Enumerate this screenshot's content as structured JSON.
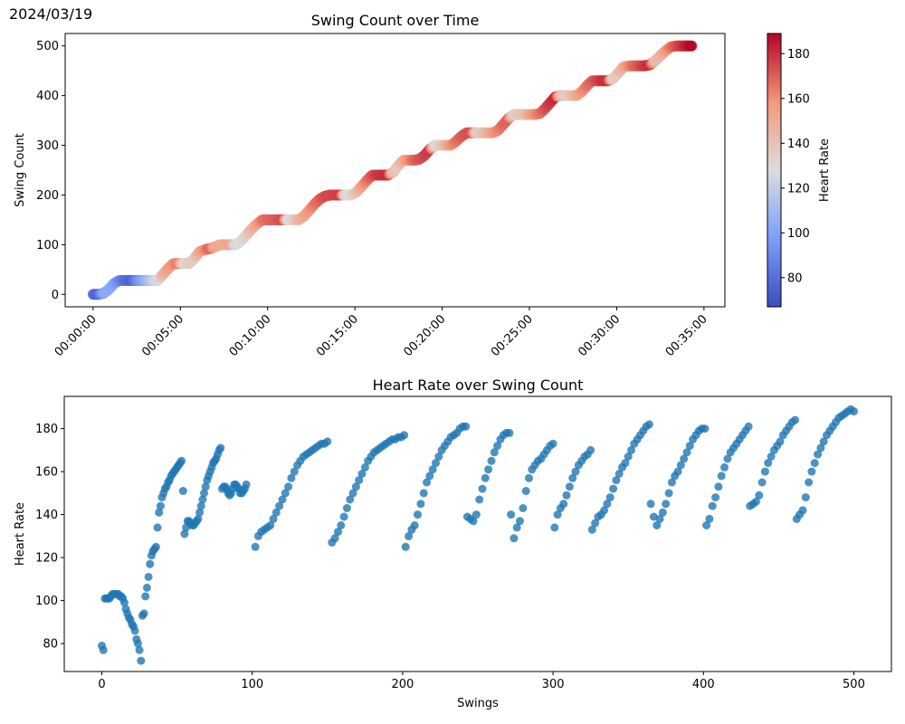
{
  "date": "2024/03/19",
  "chart_data": [
    {
      "type": "scatter",
      "title": "Swing Count over Time",
      "xlabel": "",
      "ylabel": "Swing Count",
      "xlim_minutes": [
        -1.6,
        36.2
      ],
      "ylim": [
        -25,
        525
      ],
      "x_ticks": [
        {
          "label": "00:00:00",
          "minutes": 0
        },
        {
          "label": "00:05:00",
          "minutes": 5
        },
        {
          "label": "00:10:00",
          "minutes": 10
        },
        {
          "label": "00:15:00",
          "minutes": 15
        },
        {
          "label": "00:20:00",
          "minutes": 20
        },
        {
          "label": "00:25:00",
          "minutes": 25
        },
        {
          "label": "00:30:00",
          "minutes": 30
        },
        {
          "label": "00:35:00",
          "minutes": 35
        }
      ],
      "y_ticks": [
        0,
        100,
        200,
        300,
        400,
        500
      ],
      "colorbar": {
        "label": "Heart Rate",
        "range": [
          67,
          189
        ],
        "ticks": [
          80,
          100,
          120,
          140,
          160,
          180
        ],
        "colormap": "coolwarm"
      },
      "grid": false,
      "series": [
        {
          "time_minutes": [
            0,
            0.3,
            0.6,
            0.9,
            1.2,
            1.5,
            1.8,
            2.2,
            2.6,
            3.0,
            3.4,
            3.7,
            4.0,
            4.3,
            4.6,
            4.9,
            5.2,
            5.5,
            5.8,
            6.1,
            6.4,
            6.7,
            7.0,
            7.3,
            7.6,
            7.9,
            8.2,
            8.5,
            8.8,
            9.1,
            9.4,
            9.7,
            10.0,
            10.3,
            10.6,
            10.9,
            11.2,
            11.5,
            11.8,
            12.1,
            12.4,
            12.7,
            13.0,
            13.3,
            13.6,
            13.9,
            14.2,
            14.5,
            14.8,
            15.1,
            15.4,
            15.7,
            16.0,
            16.3,
            16.6,
            16.9,
            17.2,
            17.5,
            17.8,
            18.1,
            18.4,
            18.7,
            19.0,
            19.3,
            19.6,
            19.9,
            20.2,
            20.5,
            20.8,
            21.1,
            21.4,
            21.7,
            22.0,
            22.3,
            22.6,
            22.9,
            23.2,
            23.5,
            23.8,
            24.1,
            24.4,
            24.7,
            25.0,
            25.3,
            25.6,
            25.9,
            26.2,
            26.5,
            26.8,
            27.1,
            27.4,
            27.7,
            28.0,
            28.3,
            28.6,
            28.9,
            29.2,
            29.5,
            29.8,
            30.1,
            30.4,
            30.7,
            31.0,
            31.3,
            31.6,
            31.9,
            32.2,
            32.5,
            32.8,
            33.1,
            33.4,
            33.7,
            34.0,
            34.3
          ],
          "swing_count": [
            0,
            0,
            2,
            10,
            22,
            28,
            28,
            28,
            28,
            28,
            28,
            28,
            40,
            52,
            62,
            62,
            62,
            62,
            72,
            86,
            90,
            92,
            96,
            100,
            100,
            100,
            100,
            108,
            120,
            132,
            142,
            150,
            150,
            150,
            150,
            150,
            150,
            150,
            150,
            158,
            170,
            182,
            192,
            198,
            200,
            200,
            200,
            200,
            200,
            206,
            218,
            230,
            240,
            240,
            240,
            240,
            246,
            260,
            270,
            270,
            270,
            272,
            280,
            292,
            300,
            300,
            300,
            300,
            308,
            318,
            325,
            325,
            325,
            325,
            325,
            325,
            330,
            342,
            354,
            362,
            362,
            362,
            362,
            362,
            364,
            374,
            386,
            398,
            400,
            400,
            400,
            400,
            408,
            420,
            430,
            430,
            430,
            430,
            434,
            446,
            458,
            460,
            460,
            460,
            460,
            462,
            470,
            480,
            490,
            498,
            500,
            500,
            500,
            500
          ],
          "heart_rate": [
            78,
            77,
            101,
            103,
            100,
            90,
            80,
            75,
            93,
            105,
            120,
            125,
            145,
            155,
            160,
            165,
            131,
            136,
            137,
            150,
            160,
            170,
            152,
            150,
            150,
            154,
            125,
            130,
            135,
            145,
            155,
            165,
            168,
            170,
            172,
            174,
            127,
            135,
            145,
            152,
            158,
            165,
            170,
            174,
            175,
            176,
            177,
            125,
            132,
            140,
            155,
            165,
            172,
            178,
            180,
            181,
            140,
            138,
            150,
            160,
            168,
            172,
            176,
            178,
            129,
            135,
            145,
            158,
            165,
            170,
            173,
            173,
            134,
            140,
            146,
            155,
            162,
            168,
            170,
            133,
            138,
            140,
            150,
            160,
            165,
            172,
            178,
            182,
            143,
            135,
            140,
            150,
            158,
            165,
            170,
            175,
            180,
            180,
            135,
            140,
            150,
            160,
            168,
            172,
            178,
            181,
            144,
            145,
            155,
            165,
            172,
            178,
            183,
            189
          ]
        }
      ]
    },
    {
      "type": "scatter",
      "title": "Heart Rate over Swing Count",
      "xlabel": "Swings",
      "ylabel": "Heart Rate",
      "xlim": [
        -25,
        525
      ],
      "ylim": [
        67,
        195
      ],
      "x_ticks": [
        0,
        100,
        200,
        300,
        400,
        500
      ],
      "y_ticks": [
        80,
        100,
        120,
        140,
        160,
        180
      ],
      "color": "#1f77b4",
      "grid": false,
      "segments": [
        {
          "x": [
            0,
            1,
            2,
            3,
            4,
            5,
            6,
            7,
            8,
            9,
            10,
            11,
            12,
            13,
            14,
            15,
            16,
            17,
            18,
            19,
            20,
            21,
            22,
            23,
            24,
            25,
            26,
            27,
            28,
            29,
            30,
            31,
            32,
            33,
            34,
            35,
            36,
            37,
            38,
            39,
            40,
            41,
            42,
            43,
            44,
            45,
            46,
            47,
            48,
            49,
            50,
            51,
            52,
            53,
            54,
            55,
            56,
            57,
            58,
            59,
            60,
            61
          ],
          "y": [
            79,
            77,
            101,
            101,
            101,
            101,
            102,
            103,
            103,
            103,
            103,
            103,
            102,
            102,
            101,
            99,
            96,
            94,
            92,
            91,
            89,
            88,
            86,
            82,
            80,
            77,
            72,
            93,
            94,
            102,
            106,
            111,
            117,
            121,
            123,
            124,
            125,
            134,
            141,
            144,
            148,
            150,
            152,
            153,
            155,
            156,
            158,
            159,
            160,
            161,
            162,
            163,
            164,
            165,
            151,
            131,
            134,
            137,
            137,
            136,
            135,
            135
          ]
        },
        {
          "x": [
            62,
            63,
            64,
            65,
            66,
            67,
            68,
            69,
            70,
            71,
            72,
            73,
            74,
            75,
            76,
            77,
            78,
            79,
            80,
            81,
            82,
            83,
            84,
            85,
            86,
            87,
            88,
            89,
            90,
            91,
            92,
            93,
            94,
            95,
            96
          ],
          "y": [
            136,
            137,
            138,
            141,
            144,
            147,
            150,
            153,
            156,
            158,
            160,
            162,
            164,
            165,
            166,
            168,
            170,
            171,
            152,
            153,
            153,
            152,
            150,
            149,
            150,
            152,
            154,
            154,
            153,
            152,
            150,
            150,
            151,
            152,
            154
          ]
        },
        {
          "x": [
            102,
            104,
            106,
            108,
            110,
            112,
            114,
            116,
            118,
            120,
            122,
            124,
            126,
            128,
            130,
            132,
            134,
            136,
            138,
            140,
            142,
            144,
            146,
            148,
            150
          ],
          "y": [
            125,
            130,
            132,
            133,
            134,
            135,
            138,
            141,
            144,
            147,
            150,
            153,
            157,
            160,
            163,
            165,
            167,
            168,
            169,
            170,
            171,
            172,
            173,
            173,
            174
          ]
        },
        {
          "x": [
            153,
            155,
            157,
            159,
            161,
            163,
            165,
            167,
            169,
            171,
            173,
            175,
            177,
            179,
            181,
            183,
            185,
            187,
            189,
            191,
            193,
            195,
            197,
            199,
            201
          ],
          "y": [
            127,
            129,
            132,
            135,
            139,
            143,
            147,
            150,
            153,
            156,
            159,
            162,
            165,
            167,
            169,
            170,
            171,
            172,
            173,
            174,
            175,
            175,
            176,
            176,
            177
          ]
        },
        {
          "x": [
            202,
            204,
            206,
            208,
            210,
            212,
            214,
            216,
            218,
            220,
            222,
            224,
            226,
            228,
            230,
            232,
            234,
            236,
            238,
            240,
            242
          ],
          "y": [
            125,
            130,
            133,
            135,
            140,
            145,
            150,
            155,
            158,
            161,
            164,
            167,
            170,
            172,
            174,
            176,
            177,
            178,
            180,
            181,
            181
          ]
        },
        {
          "x": [
            243,
            245,
            247,
            249,
            251,
            253,
            255,
            257,
            259,
            261,
            263,
            265,
            267,
            269,
            271
          ],
          "y": [
            139,
            138,
            137,
            140,
            147,
            152,
            157,
            161,
            165,
            169,
            172,
            175,
            177,
            178,
            178
          ]
        },
        {
          "x": [
            272,
            274,
            276,
            278,
            280,
            282,
            284,
            286,
            288,
            290,
            292,
            294,
            296,
            298,
            300
          ],
          "y": [
            140,
            129,
            134,
            137,
            143,
            151,
            157,
            161,
            163,
            165,
            166,
            168,
            170,
            172,
            173
          ]
        },
        {
          "x": [
            301,
            303,
            305,
            307,
            309,
            311,
            313,
            315,
            317,
            319,
            321,
            323,
            325
          ],
          "y": [
            134,
            140,
            143,
            145,
            149,
            153,
            157,
            160,
            163,
            165,
            167,
            168,
            170
          ]
        },
        {
          "x": [
            326,
            328,
            330,
            332,
            334,
            336,
            338,
            340,
            342,
            344,
            346,
            348,
            350,
            352,
            354,
            356,
            358,
            360,
            362,
            364
          ],
          "y": [
            133,
            136,
            139,
            140,
            142,
            145,
            148,
            152,
            156,
            159,
            162,
            164,
            167,
            170,
            173,
            175,
            177,
            179,
            181,
            182
          ]
        },
        {
          "x": [
            365,
            367,
            369,
            371,
            373,
            375,
            377,
            379,
            381,
            383,
            385,
            387,
            389,
            391,
            393,
            395,
            397,
            399,
            401
          ],
          "y": [
            145,
            139,
            135,
            138,
            141,
            145,
            150,
            155,
            158,
            160,
            163,
            166,
            169,
            172,
            175,
            177,
            179,
            180,
            180
          ]
        },
        {
          "x": [
            402,
            404,
            406,
            408,
            410,
            412,
            414,
            416,
            418,
            420,
            422,
            424,
            426,
            428,
            430
          ],
          "y": [
            135,
            138,
            144,
            148,
            153,
            158,
            162,
            166,
            169,
            171,
            173,
            175,
            177,
            179,
            181
          ]
        },
        {
          "x": [
            431,
            433,
            435,
            437,
            439,
            441,
            443,
            445,
            447,
            449,
            451,
            453,
            455,
            457,
            459,
            461
          ],
          "y": [
            144,
            145,
            146,
            149,
            155,
            160,
            164,
            167,
            170,
            172,
            174,
            177,
            179,
            181,
            183,
            184
          ]
        },
        {
          "x": [
            462,
            464,
            466,
            468,
            470,
            472,
            474,
            476,
            478,
            480,
            482,
            484,
            486,
            488,
            490,
            492,
            494,
            496,
            498,
            500
          ],
          "y": [
            138,
            140,
            142,
            148,
            155,
            160,
            164,
            168,
            171,
            174,
            177,
            179,
            181,
            183,
            185,
            186,
            187,
            188,
            189,
            188
          ]
        }
      ]
    }
  ]
}
